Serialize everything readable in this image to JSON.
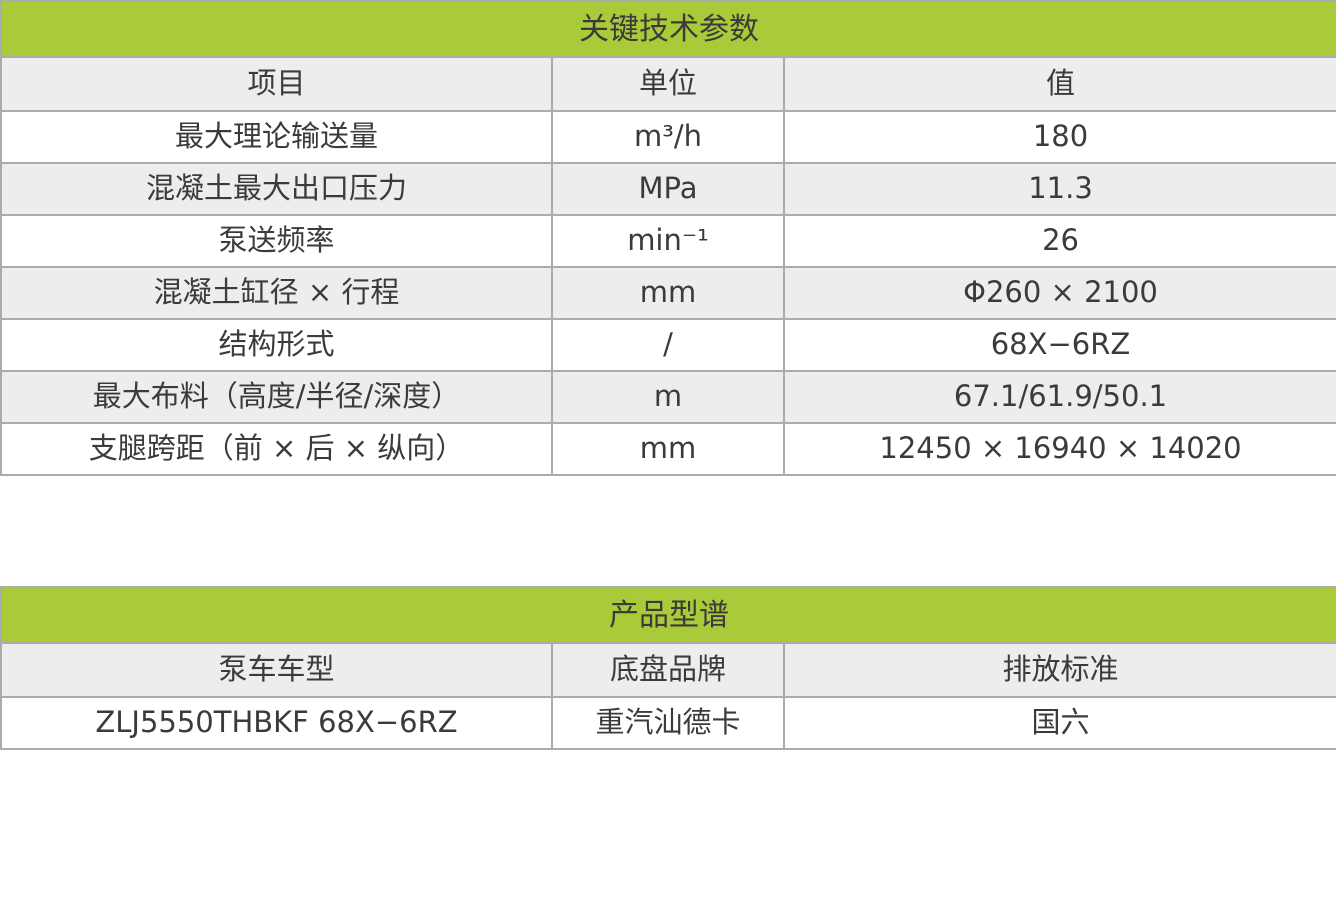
{
  "colors": {
    "header_green": "#a9cb3a",
    "row_alt_gray": "#ededee",
    "border_gray": "#ababab",
    "text": "#3e3a39",
    "page_background": "#ffffff"
  },
  "key_parameters": {
    "title": "关键技术参数",
    "columns": [
      "项目",
      "单位",
      "值"
    ],
    "rows": [
      {
        "item": "最大理论输送量",
        "unit": "m³/h",
        "value": "180"
      },
      {
        "item": "混凝土最大出口压力",
        "unit": "MPa",
        "value": "11.3"
      },
      {
        "item": "泵送频率",
        "unit": "min⁻¹",
        "value": "26"
      },
      {
        "item": "混凝土缸径 × 行程",
        "unit": "mm",
        "value": "Φ260 × 2100"
      },
      {
        "item": "结构形式",
        "unit": "/",
        "value": "68X−6RZ"
      },
      {
        "item": "最大布料（高度/半径/深度）",
        "unit": "m",
        "value": "67.1/61.9/50.1"
      },
      {
        "item": "支腿跨距（前 × 后 × 纵向）",
        "unit": "mm",
        "value": "12450 × 16940 × 14020"
      }
    ]
  },
  "product_lineup": {
    "title": "产品型谱",
    "columns": [
      "泵车车型",
      "底盘品牌",
      "排放标准"
    ],
    "rows": [
      {
        "model": "ZLJ5550THBKF 68X−6RZ",
        "chassis": "重汽汕德卡",
        "emission": "国六"
      }
    ]
  }
}
